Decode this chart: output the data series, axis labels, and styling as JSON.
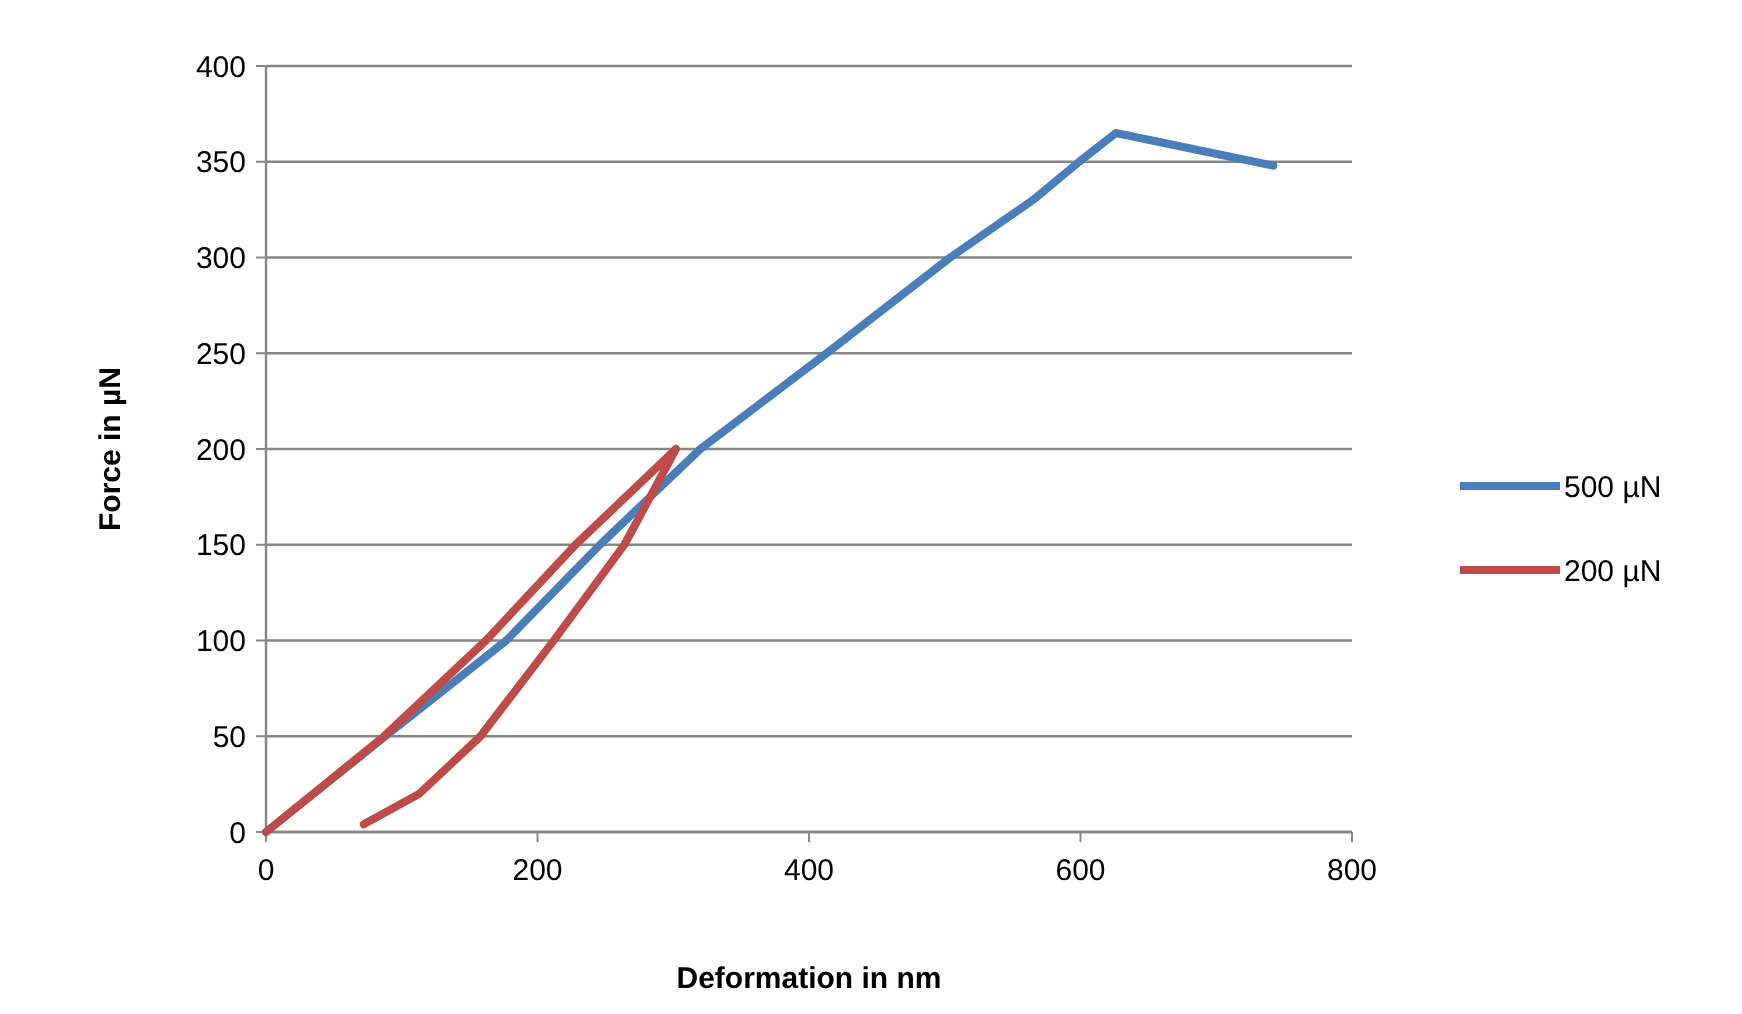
{
  "chart_data": {
    "type": "line",
    "xlabel": "Deformation in nm",
    "ylabel": "Force in µN",
    "xlim": [
      0,
      800
    ],
    "xticks": [
      0,
      200,
      400,
      600,
      800
    ],
    "ylim": [
      0,
      400
    ],
    "yticks": [
      0,
      50,
      100,
      150,
      200,
      250,
      300,
      350,
      400
    ],
    "grid": "y",
    "legend": "right",
    "marker": "none",
    "line_style": "solid",
    "series": [
      {
        "name": "500 µN",
        "color": "#4a7ebb",
        "x": [
          0,
          88,
          177,
          246,
          320,
          413,
          504,
          565,
          599,
          626,
          742
        ],
        "values": [
          0,
          50,
          100,
          150,
          200,
          250,
          300,
          330,
          350,
          365,
          348
        ]
      },
      {
        "name": "200 µN",
        "color": "#be4b48",
        "x": [
          0,
          87,
          162,
          228,
          302,
          264,
          212,
          158,
          113,
          72
        ],
        "values": [
          0,
          50,
          100,
          150,
          200,
          150,
          100,
          50,
          20,
          4
        ]
      }
    ]
  }
}
